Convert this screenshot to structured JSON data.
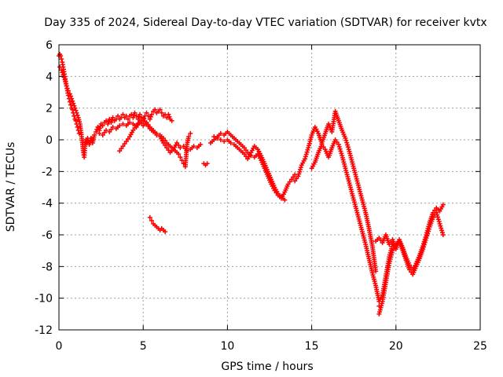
{
  "chart_data": {
    "type": "scatter",
    "title": "Day 335 of 2024, Sidereal Day-to-day VTEC variation (SDTVAR) for receiver kvtx",
    "xlabel": "GPS time / hours",
    "ylabel": "SDTVAR / TECUs",
    "xlim": [
      0,
      25
    ],
    "ylim": [
      -12,
      6
    ],
    "xticks": [
      0,
      5,
      10,
      15,
      20,
      25
    ],
    "yticks": [
      -12,
      -10,
      -8,
      -6,
      -4,
      -2,
      0,
      2,
      4,
      6
    ],
    "xtick_labels": [
      "0",
      "5",
      "10",
      "15",
      "20",
      "25"
    ],
    "ytick_labels": [
      "-12",
      "-10",
      "-8",
      "-6",
      "-4",
      "-2",
      "0",
      "2",
      "4",
      "6"
    ],
    "grid": true,
    "legend": "none",
    "marker": "plus",
    "color": "#ff0000",
    "series": [
      {
        "x": [
          0.0,
          0.05,
          0.1,
          0.15,
          0.2,
          0.25,
          0.3,
          0.35,
          0.4,
          0.45,
          0.5,
          0.55,
          0.6,
          0.65,
          0.7,
          0.75,
          0.8,
          0.85,
          0.9,
          0.95,
          1.0,
          1.05,
          1.1,
          1.15,
          1.2,
          0.05,
          0.15,
          0.25,
          0.35,
          0.45,
          0.55,
          0.65,
          0.75,
          0.85,
          0.95,
          1.05,
          1.15,
          1.25,
          1.3,
          1.35,
          1.4,
          1.45,
          1.5,
          1.55,
          1.6,
          1.65,
          1.7,
          1.75
        ],
        "y": [
          5.3,
          5.4,
          5.3,
          5.1,
          4.9,
          4.6,
          4.3,
          4.0,
          3.7,
          3.4,
          3.1,
          2.8,
          2.6,
          2.4,
          2.2,
          2.0,
          1.9,
          1.7,
          1.5,
          1.3,
          1.2,
          1.0,
          0.8,
          0.6,
          0.4,
          4.6,
          4.4,
          4.1,
          3.8,
          3.4,
          3.1,
          2.9,
          2.6,
          2.3,
          2.0,
          1.7,
          1.4,
          1.0,
          0.6,
          0.2,
          -0.3,
          -0.8,
          -1.1,
          -0.4,
          0.0,
          -0.2,
          0.1,
          -0.1
        ]
      },
      {
        "x": [
          1.8,
          1.9,
          2.0,
          2.1,
          2.2,
          2.3,
          2.4,
          2.5,
          2.6,
          2.7,
          2.8,
          2.9,
          3.0,
          3.1,
          3.2,
          3.3,
          3.4,
          3.5,
          3.6,
          3.7,
          3.8,
          3.9,
          4.0,
          4.1,
          4.2,
          4.3,
          4.4,
          4.5,
          4.6,
          4.7,
          4.8,
          4.9,
          5.0,
          5.1,
          5.2,
          5.3,
          5.4,
          5.5,
          5.6,
          5.7,
          5.8,
          5.9,
          6.0,
          6.1,
          6.2,
          6.3,
          6.4,
          6.5,
          6.6,
          6.7
        ],
        "y": [
          -0.3,
          0.1,
          -0.2,
          0.3,
          0.5,
          0.8,
          0.6,
          1.0,
          0.9,
          1.1,
          1.2,
          1.0,
          1.3,
          1.1,
          1.4,
          1.2,
          1.3,
          1.5,
          1.3,
          1.4,
          1.6,
          1.4,
          1.5,
          1.3,
          1.5,
          1.6,
          1.4,
          1.7,
          1.5,
          1.3,
          1.6,
          1.4,
          1.2,
          1.5,
          1.7,
          1.5,
          1.3,
          1.6,
          1.8,
          1.9,
          1.7,
          1.8,
          1.9,
          1.7,
          1.5,
          1.6,
          1.4,
          1.6,
          1.3,
          1.2
        ]
      },
      {
        "x": [
          2.4,
          2.6,
          2.8,
          3.0,
          3.2,
          3.4,
          3.6,
          3.8,
          4.0,
          4.2,
          4.4,
          4.6,
          4.8,
          5.0,
          5.2,
          5.4,
          5.6,
          5.8,
          6.0,
          6.2,
          6.4,
          6.6,
          6.8,
          7.0,
          7.2,
          7.4,
          7.6,
          7.8,
          8.0,
          8.2,
          8.4
        ],
        "y": [
          0.4,
          0.3,
          0.6,
          0.5,
          0.8,
          0.7,
          0.9,
          1.0,
          0.9,
          1.1,
          1.0,
          0.8,
          1.2,
          0.9,
          1.1,
          0.8,
          0.6,
          0.3,
          0.2,
          -0.2,
          -0.5,
          -0.8,
          -0.6,
          -0.2,
          -0.5,
          -0.4,
          -0.7,
          -0.6,
          -0.4,
          -0.5,
          -0.3
        ]
      },
      {
        "x": [
          3.6,
          3.8,
          4.0,
          4.2,
          4.4,
          4.6,
          4.8,
          5.0,
          5.2,
          5.4,
          5.6,
          5.8,
          6.0,
          6.2,
          6.4,
          6.6,
          6.8,
          7.0,
          7.1,
          7.2,
          7.3,
          7.4,
          7.5,
          7.6,
          7.7,
          7.8,
          8.6,
          8.7,
          8.8
        ],
        "y": [
          -0.7,
          -0.4,
          -0.1,
          0.2,
          0.6,
          0.9,
          1.1,
          1.3,
          1.0,
          0.7,
          0.5,
          0.4,
          0.3,
          0.1,
          -0.2,
          -0.4,
          -0.6,
          -0.8,
          -0.9,
          -1.1,
          -1.3,
          -1.5,
          -1.7,
          -0.3,
          0.2,
          0.4,
          -1.5,
          -1.6,
          -1.5
        ]
      },
      {
        "x": [
          5.4,
          5.5,
          5.6,
          5.7,
          5.8,
          5.9,
          6.0,
          6.1,
          6.2,
          6.3
        ],
        "y": [
          -4.9,
          -5.1,
          -5.3,
          -5.4,
          -5.5,
          -5.6,
          -5.7,
          -5.6,
          -5.7,
          -5.8
        ]
      },
      {
        "x": [
          9.0,
          9.2,
          9.4,
          9.6,
          9.8,
          10.0,
          10.2,
          10.4,
          10.6,
          10.8,
          11.0,
          11.2,
          11.4,
          11.6,
          11.8,
          12.0,
          12.2,
          12.4,
          12.6,
          12.8,
          13.0,
          13.2,
          13.4,
          13.6,
          13.8,
          14.0
        ],
        "y": [
          -0.2,
          0.0,
          0.2,
          0.4,
          0.3,
          0.5,
          0.3,
          0.1,
          -0.1,
          -0.3,
          -0.5,
          -0.8,
          -1.0,
          -1.1,
          -0.9,
          -1.3,
          -1.8,
          -2.3,
          -2.8,
          -3.2,
          -3.5,
          -3.7,
          -3.3,
          -2.8,
          -2.5,
          -2.2
        ]
      },
      {
        "x": [
          9.2,
          9.4,
          9.6,
          9.8,
          10.0,
          10.2,
          10.4,
          10.6,
          10.8,
          11.0,
          11.2,
          11.4,
          11.6,
          11.8,
          12.0,
          12.2,
          12.4,
          12.6,
          12.8,
          13.0,
          13.2,
          13.4
        ],
        "y": [
          0.2,
          0.1,
          0.0,
          -0.1,
          0.0,
          -0.2,
          -0.3,
          -0.5,
          -0.7,
          -0.9,
          -1.2,
          -0.8,
          -0.4,
          -0.6,
          -1.0,
          -1.5,
          -2.0,
          -2.5,
          -3.0,
          -3.4,
          -3.6,
          -3.8
        ]
      },
      {
        "x": [
          14.0,
          14.2,
          14.4,
          14.6,
          14.8,
          15.0,
          15.2,
          15.4,
          15.6,
          15.8,
          16.0,
          16.2,
          16.4,
          16.6,
          16.8,
          17.0,
          17.2,
          17.4,
          17.6,
          17.8,
          18.0,
          18.2,
          18.4,
          18.6,
          18.8,
          19.0
        ],
        "y": [
          -2.6,
          -2.3,
          -1.6,
          -1.2,
          -0.5,
          0.3,
          0.8,
          0.4,
          -0.2,
          0.4,
          1.0,
          0.5,
          1.8,
          1.2,
          0.6,
          0.1,
          -0.6,
          -1.4,
          -2.2,
          -3.0,
          -3.8,
          -4.6,
          -5.6,
          -6.7,
          -8.3,
          -10.5
        ]
      },
      {
        "x": [
          15.0,
          15.2,
          15.4,
          15.6,
          15.8,
          16.0,
          16.2,
          16.4,
          16.6,
          16.8,
          17.0,
          17.2,
          17.4,
          17.6,
          17.8,
          18.0,
          18.2,
          18.4,
          18.6,
          18.8,
          19.0,
          19.2,
          19.4,
          19.6,
          19.8
        ],
        "y": [
          -1.8,
          -1.4,
          -0.8,
          -0.3,
          -0.6,
          -1.1,
          -0.5,
          0.0,
          -0.3,
          -1.0,
          -1.8,
          -2.6,
          -3.4,
          -4.2,
          -5.0,
          -5.8,
          -6.6,
          -7.5,
          -8.4,
          -9.2,
          -10.2,
          -9.8,
          -8.6,
          -7.4,
          -6.6
        ]
      },
      {
        "x": [
          18.8,
          19.0,
          19.2,
          19.4,
          19.6,
          19.8,
          20.0,
          20.2,
          20.4,
          20.6,
          20.8,
          21.0,
          21.2,
          21.4,
          21.6,
          21.8,
          22.0,
          22.2,
          22.4,
          22.6,
          22.8
        ],
        "y": [
          -6.4,
          -6.2,
          -6.5,
          -6.0,
          -6.6,
          -6.3,
          -6.9,
          -6.3,
          -6.8,
          -7.4,
          -7.9,
          -8.2,
          -7.8,
          -7.3,
          -6.7,
          -6.0,
          -5.2,
          -4.6,
          -4.3,
          -4.5,
          -4.1
        ]
      },
      {
        "x": [
          19.0,
          19.2,
          19.4,
          19.6,
          19.8,
          20.0,
          20.2,
          20.4,
          20.6,
          20.8,
          21.0,
          21.2,
          21.4,
          21.6,
          21.8,
          22.0,
          22.2,
          22.4,
          22.6,
          22.8
        ],
        "y": [
          -11.0,
          -10.2,
          -9.0,
          -7.8,
          -7.0,
          -6.6,
          -6.4,
          -7.0,
          -7.6,
          -8.2,
          -8.5,
          -8.0,
          -7.5,
          -6.9,
          -6.2,
          -5.5,
          -4.9,
          -4.6,
          -5.3,
          -6.0
        ]
      }
    ]
  }
}
